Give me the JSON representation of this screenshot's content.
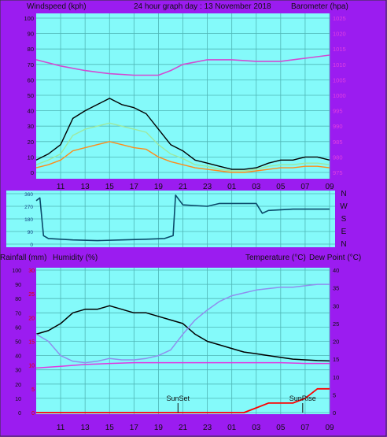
{
  "header": {
    "left_label": "Windspeed (kph)",
    "center_label": "24 hour graph day : 13 November 2018",
    "right_label": "Barometer (hpa)"
  },
  "panel2_header": {
    "rain_label": "Rainfall (mm)",
    "humidity_label": "Humidity (%)",
    "temp_label": "Temperature (°C)",
    "dew_label": "Dew Point (°C)"
  },
  "compass": [
    "N",
    "W",
    "S",
    "E",
    "N"
  ],
  "chart_data": [
    {
      "type": "line",
      "title": "24 hour graph day : 13 November 2018",
      "x_ticks": [
        "11",
        "13",
        "15",
        "17",
        "19",
        "21",
        "23",
        "01",
        "03",
        "05",
        "07",
        "09"
      ],
      "y_left": {
        "label": "Windspeed (kph)",
        "ticks": [
          0,
          10,
          20,
          30,
          40,
          50,
          60,
          70,
          80,
          90,
          100
        ],
        "range": [
          0,
          100
        ]
      },
      "y_right": {
        "label": "Barometer (hpa)",
        "ticks": [
          975,
          980,
          985,
          990,
          995,
          1000,
          1005,
          1010,
          1015,
          1020,
          1025
        ],
        "range": [
          975,
          1025
        ]
      },
      "series": [
        {
          "role": "gust",
          "color": "#000000",
          "x": [
            9,
            10,
            11,
            12,
            13,
            14,
            15,
            16,
            17,
            18,
            19,
            20,
            21,
            22,
            23,
            24,
            25,
            26,
            27,
            28,
            29,
            30,
            31,
            32,
            33
          ],
          "y": [
            8,
            12,
            18,
            35,
            40,
            44,
            48,
            44,
            42,
            38,
            28,
            18,
            14,
            8,
            6,
            4,
            2,
            2,
            3,
            6,
            8,
            8,
            10,
            10,
            8
          ]
        },
        {
          "role": "average",
          "color": "#9ee89e",
          "x": [
            9,
            10,
            11,
            12,
            13,
            14,
            15,
            16,
            17,
            18,
            19,
            20,
            21,
            22,
            23,
            24,
            25,
            26,
            27,
            28,
            29,
            30,
            31,
            32,
            33
          ],
          "y": [
            5,
            8,
            12,
            24,
            28,
            30,
            32,
            30,
            28,
            26,
            18,
            12,
            9,
            5,
            4,
            2,
            1,
            1,
            2,
            4,
            5,
            5,
            6,
            6,
            5
          ]
        },
        {
          "role": "speed",
          "color": "#ff8c1a",
          "x": [
            9,
            10,
            11,
            12,
            13,
            14,
            15,
            16,
            17,
            18,
            19,
            20,
            21,
            22,
            23,
            24,
            25,
            26,
            27,
            28,
            29,
            30,
            31,
            32,
            33
          ],
          "y": [
            3,
            5,
            8,
            14,
            16,
            18,
            20,
            18,
            16,
            15,
            10,
            7,
            5,
            3,
            2,
            1,
            0,
            0,
            1,
            2,
            3,
            3,
            4,
            4,
            3
          ]
        },
        {
          "role": "barometer",
          "color": "#d24bd2",
          "axis": "right",
          "x": [
            9,
            11,
            13,
            15,
            17,
            19,
            20,
            21,
            23,
            25,
            27,
            29,
            31,
            33
          ],
          "y": [
            1011.5,
            1009.5,
            1008,
            1007,
            1006.5,
            1006.5,
            1008,
            1010,
            1011.5,
            1011.5,
            1011,
            1011,
            1012,
            1013
          ]
        }
      ]
    },
    {
      "type": "line",
      "y_left": {
        "label": "Wind direction",
        "ticks": [
          0,
          90,
          180,
          270,
          360
        ],
        "range": [
          0,
          360
        ]
      },
      "y_right": {
        "labels": [
          "N",
          "W",
          "S",
          "E",
          "N"
        ]
      },
      "series": [
        {
          "role": "direction",
          "color": "#0a4a6a",
          "x": [
            9,
            9.3,
            9.6,
            10,
            12,
            14,
            16,
            18,
            19.5,
            20.2,
            20.4,
            21,
            23,
            24,
            25,
            27,
            27.5,
            28,
            30,
            33
          ],
          "y": [
            310,
            330,
            60,
            40,
            30,
            25,
            30,
            35,
            40,
            60,
            350,
            280,
            270,
            290,
            290,
            290,
            220,
            240,
            250,
            250
          ]
        }
      ]
    },
    {
      "type": "line",
      "x_ticks": [
        "11",
        "13",
        "15",
        "17",
        "19",
        "21",
        "23",
        "01",
        "03",
        "05",
        "07",
        "09"
      ],
      "y_left": {
        "label": "Humidity (%)",
        "ticks": [
          0,
          10,
          20,
          30,
          40,
          50,
          60,
          70,
          80,
          90,
          100
        ],
        "range": [
          0,
          100
        ]
      },
      "y_left_inner": {
        "label": "Rainfall (mm)",
        "ticks": [
          0,
          5,
          10,
          15,
          20,
          25,
          30
        ],
        "range": [
          0,
          30
        ]
      },
      "y_right": {
        "label": "Temperature (°C)",
        "ticks": [
          0,
          5,
          10,
          15,
          20,
          25,
          30,
          35,
          40
        ],
        "range": [
          0,
          40
        ]
      },
      "annotations": [
        "SunSet",
        "SunRise"
      ],
      "series": [
        {
          "role": "temperature",
          "color": "#000000",
          "axis": "right",
          "x": [
            9,
            10,
            11,
            12,
            13,
            14,
            15,
            16,
            17,
            18,
            19,
            20,
            21,
            22,
            23,
            24,
            25,
            26,
            27,
            28,
            29,
            30,
            31,
            32,
            33
          ],
          "y": [
            22,
            23,
            25,
            28,
            29,
            29,
            30,
            29,
            28,
            28,
            27,
            26,
            25,
            22,
            20,
            19,
            18,
            17,
            16.5,
            16,
            15.5,
            15,
            14.8,
            14.6,
            14.5
          ]
        },
        {
          "role": "humidity",
          "color": "#8f8fee",
          "x": [
            9,
            10,
            11,
            12,
            13,
            14,
            15,
            16,
            17,
            18,
            19,
            20,
            21,
            22,
            23,
            24,
            25,
            26,
            27,
            28,
            29,
            30,
            31,
            32,
            33
          ],
          "y": [
            55,
            50,
            40,
            36,
            35,
            36,
            38,
            37,
            37,
            38,
            40,
            44,
            55,
            65,
            72,
            78,
            82,
            84,
            86,
            87,
            88,
            88,
            89,
            90,
            90
          ]
        },
        {
          "role": "dew_point",
          "color": "#e038e0",
          "axis": "right",
          "x": [
            9,
            11,
            13,
            15,
            17,
            19,
            21,
            23,
            25,
            27,
            29,
            31,
            33
          ],
          "y": [
            12.5,
            13,
            13.5,
            13.8,
            14,
            14,
            14,
            14,
            14,
            14,
            14,
            13.8,
            13.8
          ]
        },
        {
          "role": "rainfall",
          "color": "#ff0000",
          "axis": "inner",
          "x": [
            9,
            26,
            27,
            28,
            29,
            30,
            30.5,
            31,
            32,
            33
          ],
          "y": [
            0,
            0,
            1,
            2,
            2,
            2,
            2.5,
            3,
            5,
            5
          ]
        }
      ]
    }
  ]
}
